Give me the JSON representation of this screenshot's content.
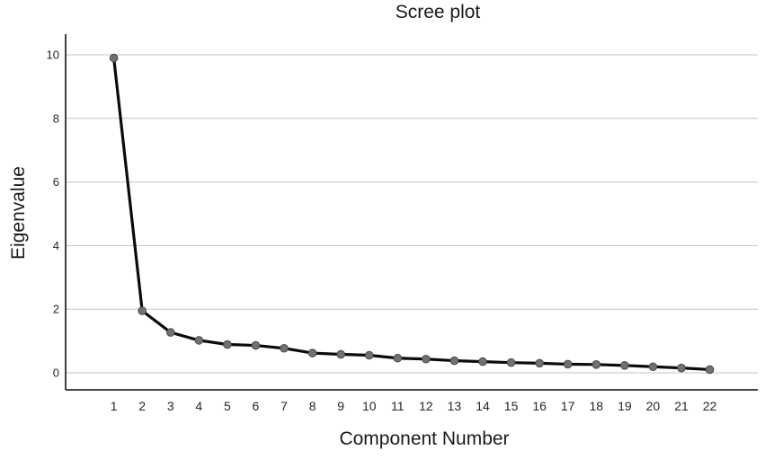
{
  "title": "Scree plot",
  "colors": {
    "background": "#ffffff",
    "line": "#0b0b0b",
    "marker_fill": "#717171",
    "marker_stroke": "#4a4a4a",
    "gridline": "#c3c3c3",
    "axis": "#2a2a2a",
    "text": "#1a1a1a",
    "tick_text": "#262626"
  },
  "chart_data": {
    "type": "line",
    "title": "Scree plot",
    "xlabel": "Component Number",
    "ylabel": "Eigenvalue",
    "x": [
      1,
      2,
      3,
      4,
      5,
      6,
      7,
      8,
      9,
      10,
      11,
      12,
      13,
      14,
      15,
      16,
      17,
      18,
      19,
      20,
      21,
      22
    ],
    "values": [
      9.9,
      1.95,
      1.27,
      1.02,
      0.89,
      0.86,
      0.77,
      0.62,
      0.58,
      0.55,
      0.46,
      0.43,
      0.38,
      0.35,
      0.32,
      0.3,
      0.27,
      0.26,
      0.23,
      0.19,
      0.15,
      0.1
    ],
    "yticks": [
      0,
      2,
      4,
      6,
      8,
      10
    ],
    "xticks": [
      1,
      2,
      3,
      4,
      5,
      6,
      7,
      8,
      9,
      10,
      11,
      12,
      13,
      14,
      15,
      16,
      17,
      18,
      19,
      20,
      21,
      22
    ],
    "ylim": [
      0,
      10.5
    ],
    "grid": "horizontal",
    "legend": "none",
    "marker": "circle"
  }
}
